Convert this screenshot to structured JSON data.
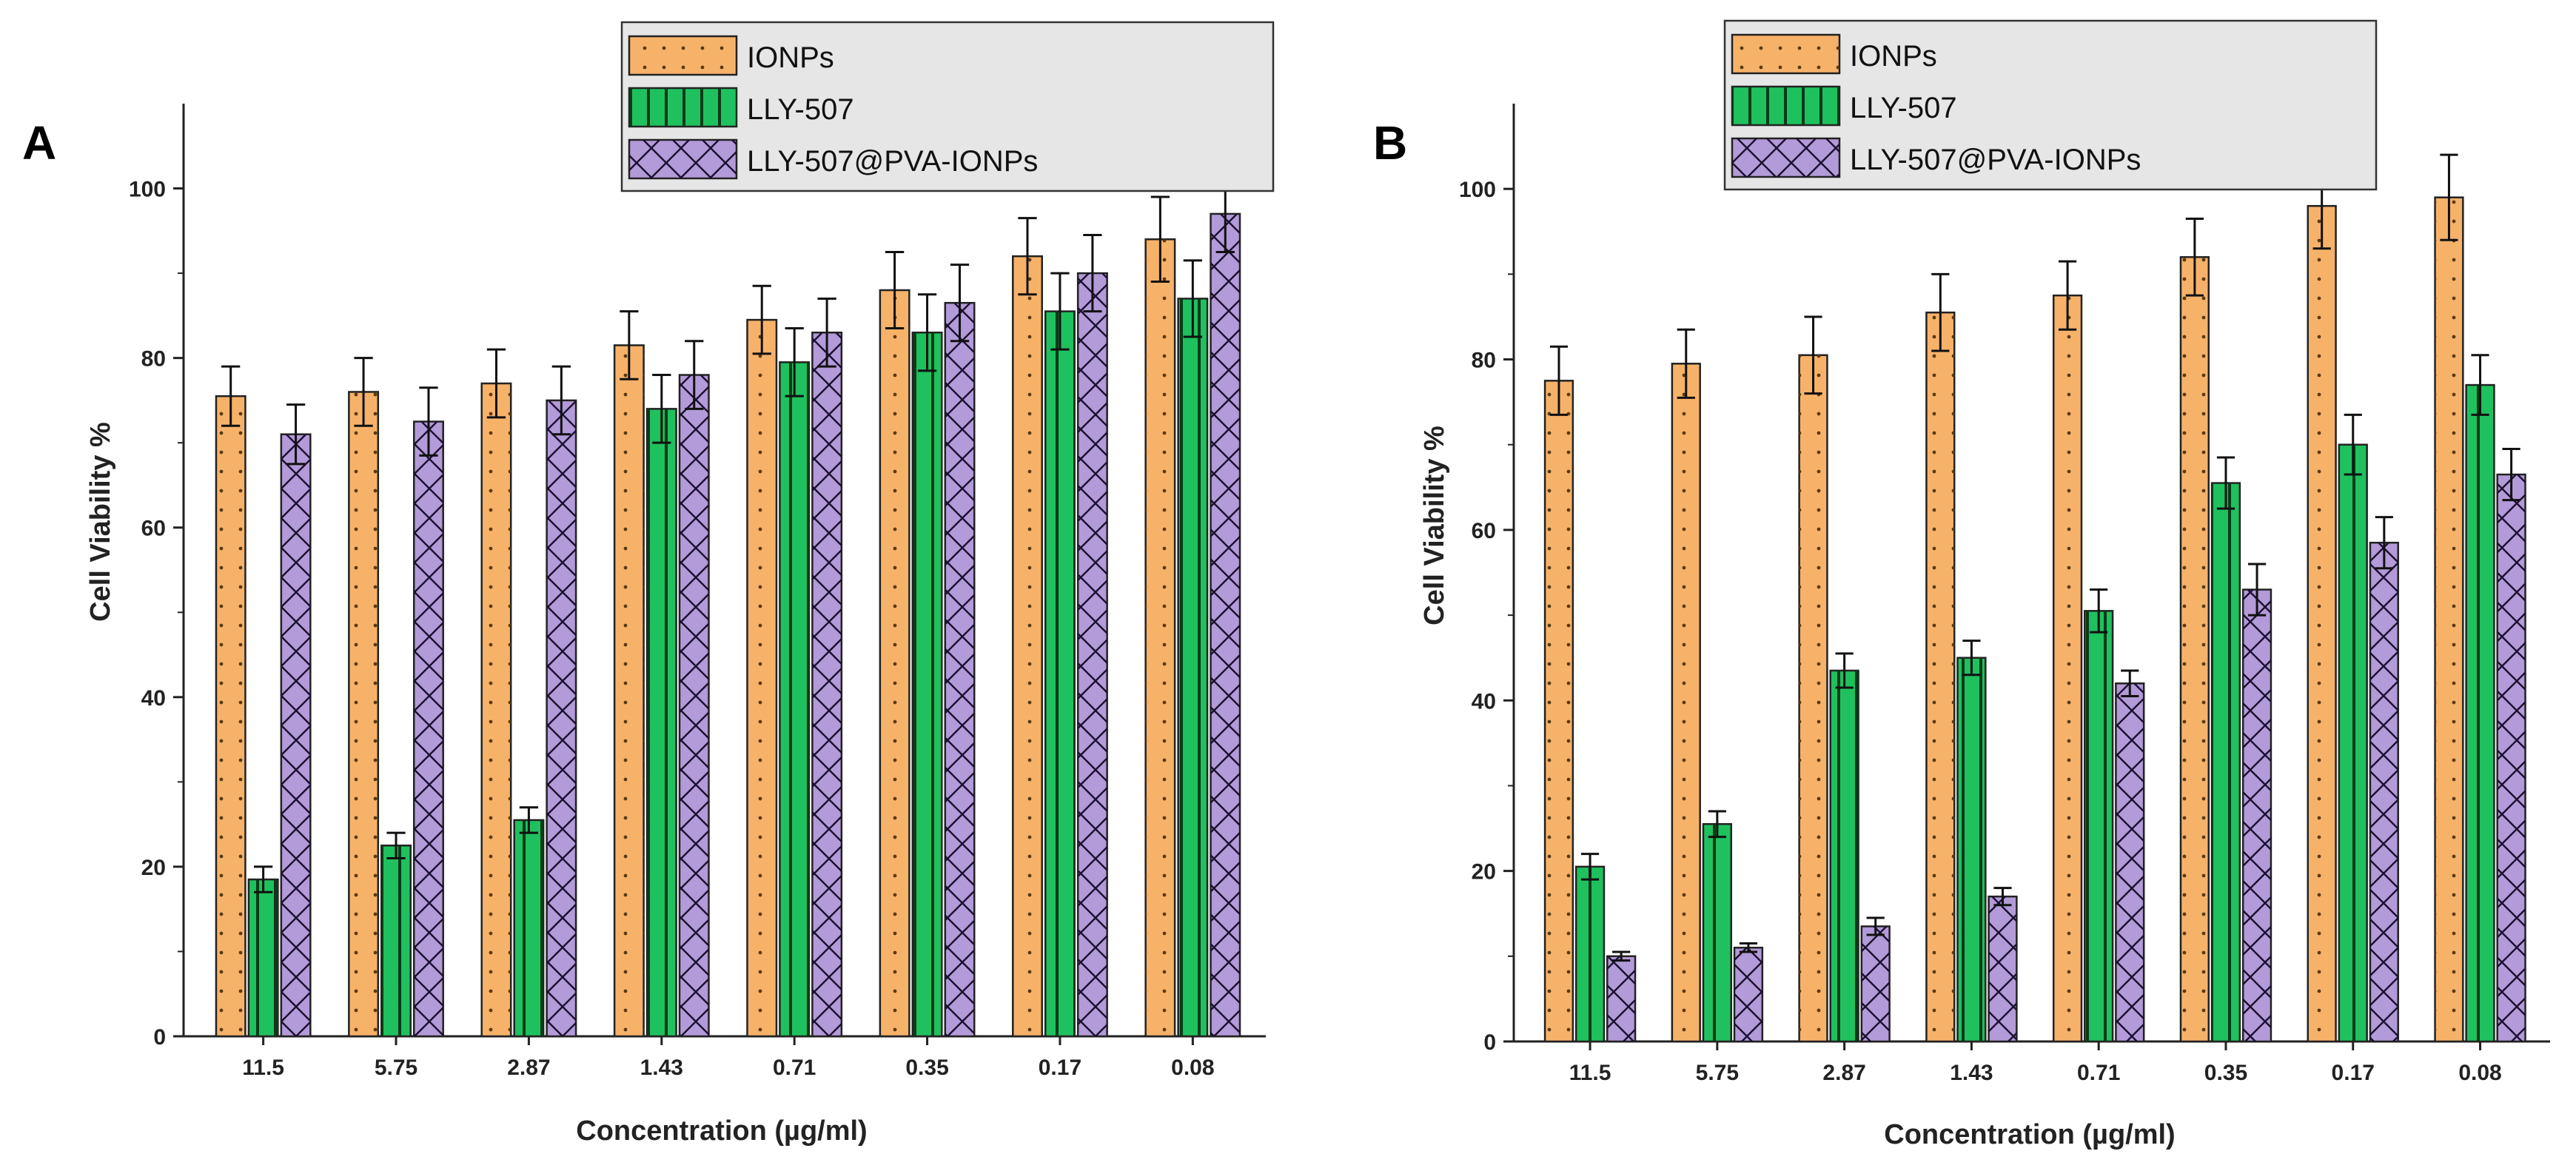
{
  "colors": {
    "IONPs": "#f7b26a",
    "LLY-507": "#1fc15e",
    "LLY-507@PVA-IONPs": "#b39ad8",
    "legend_bg": "#e6e6e6"
  },
  "chart_data": [
    {
      "panel": "A",
      "type": "bar",
      "ylabel": "Cell Viability %",
      "xlabel": "Concentration (µg/ml)",
      "ylim": [
        0,
        110
      ],
      "yticks": [
        0,
        20,
        40,
        60,
        80,
        100
      ],
      "categories": [
        "11.5",
        "5.75",
        "2.87",
        "1.43",
        "0.71",
        "0.35",
        "0.17",
        "0.08"
      ],
      "series": [
        {
          "name": "IONPs",
          "values": [
            75.5,
            76,
            77,
            81.5,
            84.5,
            88,
            92,
            94
          ],
          "errors": [
            3.5,
            4,
            4,
            4,
            4,
            4.5,
            4.5,
            5
          ]
        },
        {
          "name": "LLY-507",
          "values": [
            18.5,
            22.5,
            25.5,
            74,
            79.5,
            83,
            85.5,
            87
          ],
          "errors": [
            1.5,
            1.5,
            1.5,
            4,
            4,
            4.5,
            4.5,
            4.5
          ]
        },
        {
          "name": "LLY-507@PVA-IONPs",
          "values": [
            71,
            72.5,
            75,
            78,
            83,
            86.5,
            90,
            97
          ],
          "errors": [
            3.5,
            4,
            4,
            4,
            4,
            4.5,
            4.5,
            4.5
          ]
        }
      ]
    },
    {
      "panel": "B",
      "type": "bar",
      "ylabel": "Cell Viability %",
      "xlabel": "Concentration (µg/ml)",
      "ylim": [
        0,
        110
      ],
      "yticks": [
        0,
        20,
        40,
        60,
        80,
        100
      ],
      "categories": [
        "11.5",
        "5.75",
        "2.87",
        "1.43",
        "0.71",
        "0.35",
        "0.17",
        "0.08"
      ],
      "series": [
        {
          "name": "IONPs",
          "values": [
            77.5,
            79.5,
            80.5,
            85.5,
            87.5,
            92,
            98,
            99
          ],
          "errors": [
            4,
            4,
            4.5,
            4.5,
            4,
            4.5,
            5,
            5
          ]
        },
        {
          "name": "LLY-507",
          "values": [
            20.5,
            25.5,
            43.5,
            45,
            50.5,
            65.5,
            70,
            77
          ],
          "errors": [
            1.5,
            1.5,
            2,
            2,
            2.5,
            3,
            3.5,
            3.5
          ]
        },
        {
          "name": "LLY-507@PVA-IONPs",
          "values": [
            10,
            11,
            13.5,
            17,
            42,
            53,
            58.5,
            66.5
          ],
          "errors": [
            0.5,
            0.5,
            1,
            1,
            1.5,
            3,
            3,
            3
          ]
        }
      ]
    }
  ]
}
